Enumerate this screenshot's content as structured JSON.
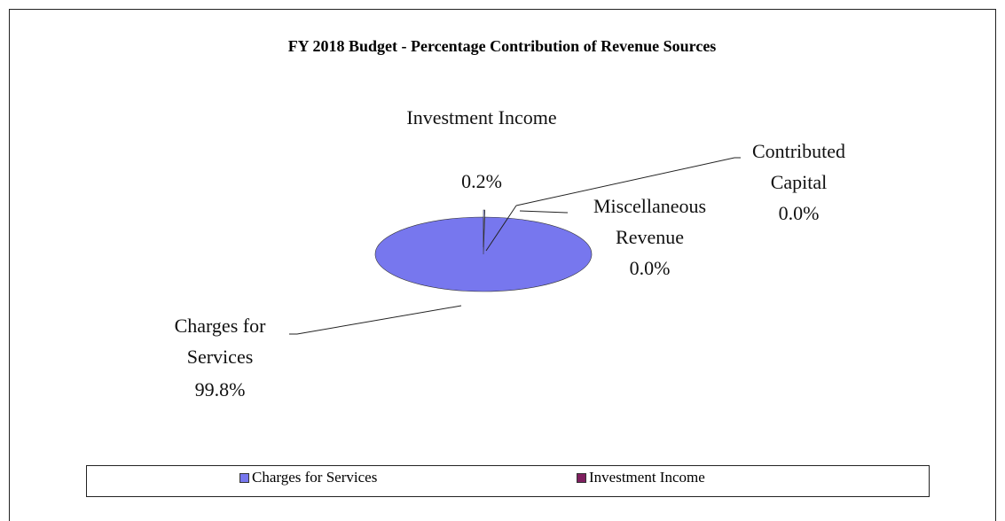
{
  "chart_data": {
    "type": "pie3d",
    "title": "FY 2018 Budget - Percentage Contribution  of Revenue Sources",
    "categories": [
      "Charges for Services",
      "Investment Income",
      "Miscellaneous Revenue",
      "Contributed Capital"
    ],
    "values": [
      99.8,
      0.2,
      0.0,
      0.0
    ],
    "value_labels": [
      "99.8%",
      "0.2%",
      "0.0%",
      "0.0%"
    ],
    "colors": [
      "#7777ee",
      "#7f1f5f",
      "#aaaaaa",
      "#999999"
    ],
    "legend": [
      "Charges for Services",
      "Investment Income"
    ]
  }
}
